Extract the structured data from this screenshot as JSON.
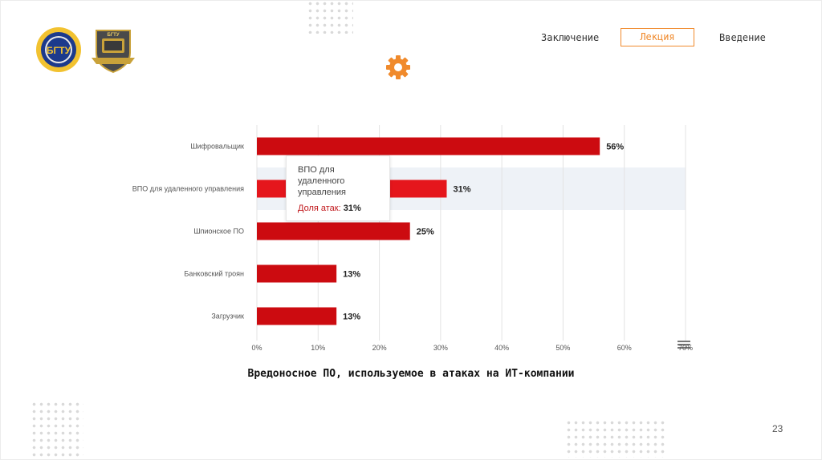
{
  "nav": {
    "items": [
      "Заключение",
      "Лекция",
      "Введение"
    ],
    "active": "Лекция"
  },
  "logos": {
    "bgtu": "БГТУ",
    "dept": "БГТУ"
  },
  "colors": {
    "bar": "#cc0b10",
    "bar_highlight": "#e5161c",
    "accent": "#f08a2c",
    "band": "#eef2f7"
  },
  "tooltip": {
    "title": "ВПО для удаленного управления",
    "label": "Доля атак:",
    "value": "31%"
  },
  "chart_data": {
    "type": "bar",
    "orientation": "horizontal",
    "categories": [
      "Шифровальщик",
      "ВПО для удаленного управления",
      "Шпионское ПО",
      "Банковский троян",
      "Загрузчик"
    ],
    "values": [
      56,
      31,
      25,
      13,
      13
    ],
    "value_labels": [
      "56%",
      "31%",
      "25%",
      "13%",
      "13%"
    ],
    "xlim": [
      0,
      70
    ],
    "x_ticks": [
      "0%",
      "10%",
      "20%",
      "30%",
      "40%",
      "50%",
      "60%",
      "70%"
    ],
    "grid": true,
    "highlighted_category": "ВПО для удаленного управления"
  },
  "caption": "Вредоносное ПО, используемое в атаках на ИТ-компании",
  "page_number": "23",
  "icons": [
    "gear-icon",
    "menu-icon"
  ]
}
